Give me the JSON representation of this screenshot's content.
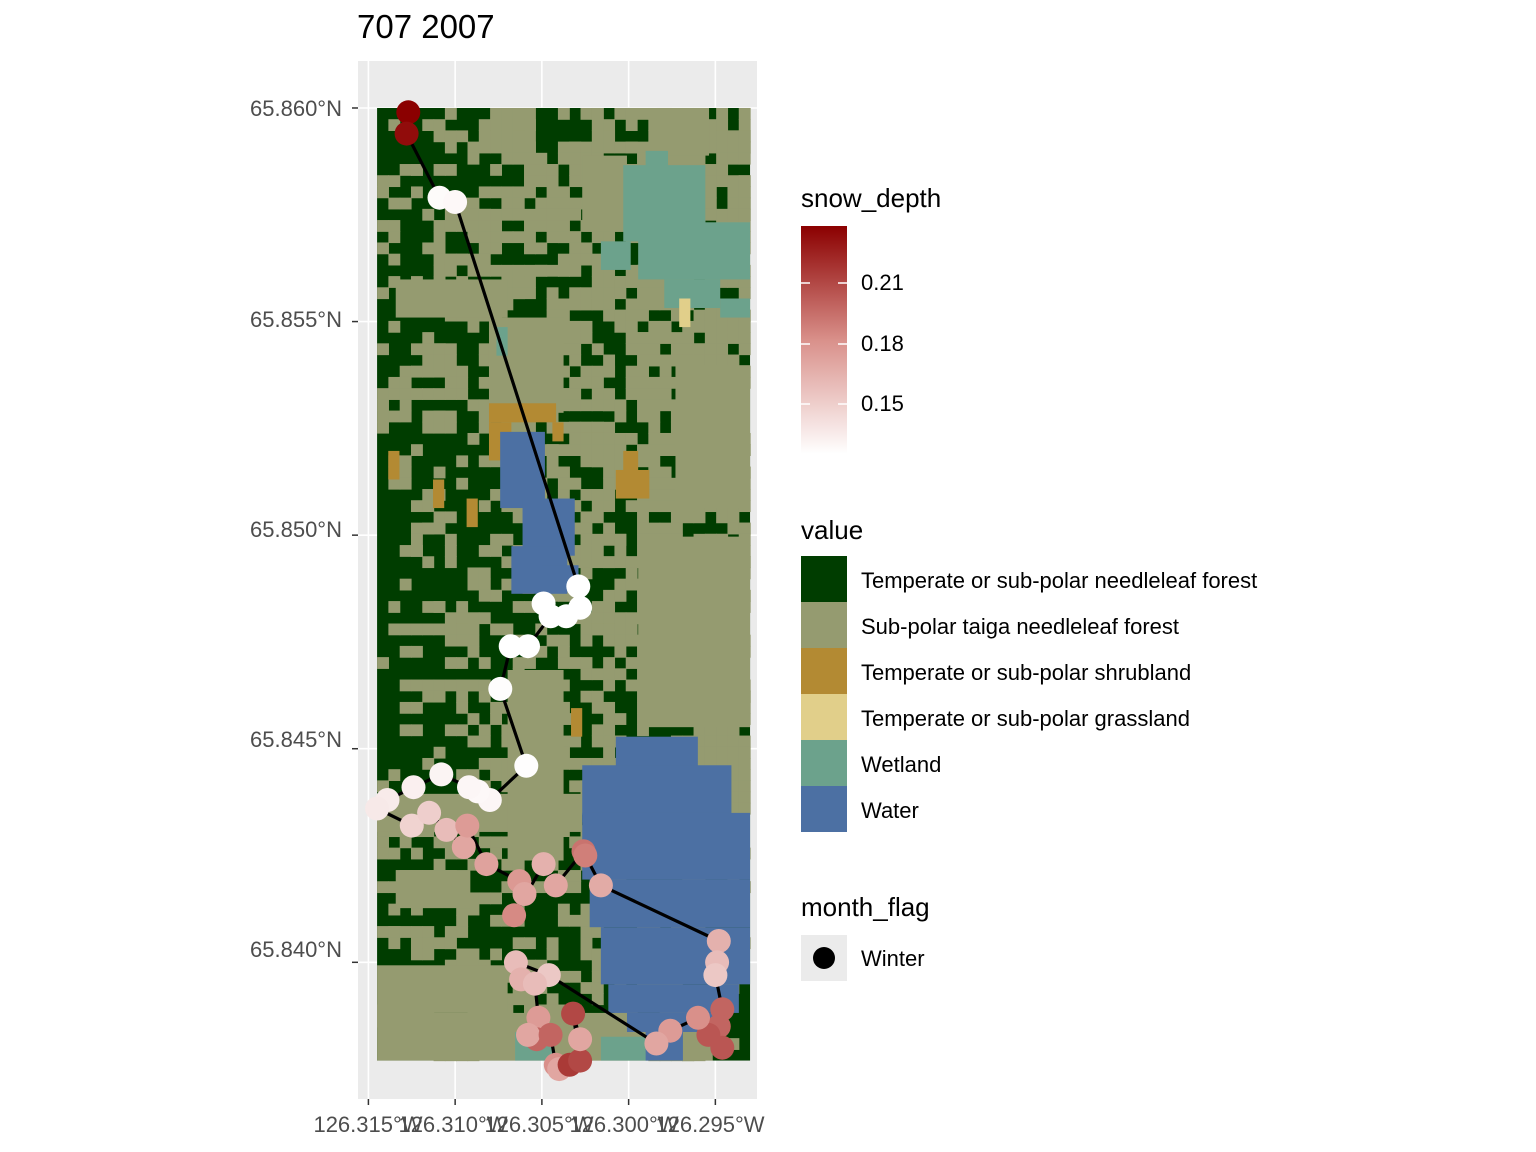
{
  "title": "707 2007",
  "axes": {
    "y_ticks": [
      "65.860°N",
      "65.855°N",
      "65.850°N",
      "65.845°N",
      "65.840°N"
    ],
    "x_ticks": [
      "126.315°W",
      "126.310°W",
      "126.305°W",
      "126.300°W",
      "126.295°W"
    ]
  },
  "legend_snow": {
    "title": "snow_depth",
    "labels": [
      "0.21",
      "0.18",
      "0.15"
    ],
    "color_low": "#ffffff",
    "color_high": "#8b0000"
  },
  "legend_value": {
    "title": "value",
    "items": [
      {
        "label": "Temperate or sub-polar needleleaf forest",
        "color": "#003d00"
      },
      {
        "label": "Sub-polar taiga needleleaf forest",
        "color": "#959b70"
      },
      {
        "label": "Temperate or sub-polar shrubland",
        "color": "#b38a33"
      },
      {
        "label": "Temperate or sub-polar grassland",
        "color": "#e1cf8a"
      },
      {
        "label": "Wetland",
        "color": "#6ca28c"
      },
      {
        "label": "Water",
        "color": "#4c70a3"
      }
    ]
  },
  "legend_month": {
    "title": "month_flag",
    "items": [
      {
        "label": "Winter"
      }
    ]
  },
  "chart_data": {
    "type": "map",
    "xlim": [
      -126.3156,
      -126.2926
    ],
    "ylim": [
      65.8368,
      65.8611
    ],
    "x_label_lon": [
      -126.315,
      -126.31,
      -126.305,
      -126.3,
      -126.295
    ],
    "y_label_lat": [
      65.86,
      65.855,
      65.85,
      65.845,
      65.84
    ],
    "snow_depth_range": [
      0.13,
      0.23
    ],
    "raster_extent": {
      "lon": [
        -126.3145,
        -126.293
      ],
      "lat": [
        65.8377,
        65.86
      ]
    },
    "track": [
      {
        "lon": -126.3127,
        "lat": 65.8599,
        "snow": 0.23
      },
      {
        "lon": -126.3128,
        "lat": 65.8594,
        "snow": 0.226
      },
      {
        "lon": -126.3109,
        "lat": 65.8579,
        "snow": 0.132
      },
      {
        "lon": -126.31,
        "lat": 65.8578,
        "snow": 0.133
      },
      {
        "lon": -126.3029,
        "lat": 65.8488,
        "snow": 0.13
      },
      {
        "lon": -126.3028,
        "lat": 65.8483,
        "snow": 0.13
      },
      {
        "lon": -126.3036,
        "lat": 65.8481,
        "snow": 0.13
      },
      {
        "lon": -126.3049,
        "lat": 65.8484,
        "snow": 0.13
      },
      {
        "lon": -126.3045,
        "lat": 65.8481,
        "snow": 0.13
      },
      {
        "lon": -126.3058,
        "lat": 65.8474,
        "snow": 0.13
      },
      {
        "lon": -126.3068,
        "lat": 65.8474,
        "snow": 0.13
      },
      {
        "lon": -126.3074,
        "lat": 65.8464,
        "snow": 0.131
      },
      {
        "lon": -126.3059,
        "lat": 65.8446,
        "snow": 0.131
      },
      {
        "lon": -126.308,
        "lat": 65.8438,
        "snow": 0.134
      },
      {
        "lon": -126.3087,
        "lat": 65.844,
        "snow": 0.133
      },
      {
        "lon": -126.3092,
        "lat": 65.8441,
        "snow": 0.134
      },
      {
        "lon": -126.3108,
        "lat": 65.8444,
        "snow": 0.135
      },
      {
        "lon": -126.3124,
        "lat": 65.8441,
        "snow": 0.137
      },
      {
        "lon": -126.3139,
        "lat": 65.8438,
        "snow": 0.139
      },
      {
        "lon": -126.3145,
        "lat": 65.8436,
        "snow": 0.14
      },
      {
        "lon": -126.3125,
        "lat": 65.8432,
        "snow": 0.15
      },
      {
        "lon": -126.3115,
        "lat": 65.8435,
        "snow": 0.152
      },
      {
        "lon": -126.3105,
        "lat": 65.8431,
        "snow": 0.16
      },
      {
        "lon": -126.3095,
        "lat": 65.8427,
        "snow": 0.17
      },
      {
        "lon": -126.3093,
        "lat": 65.8432,
        "snow": 0.175
      },
      {
        "lon": -126.3082,
        "lat": 65.8423,
        "snow": 0.172
      },
      {
        "lon": -126.3063,
        "lat": 65.8419,
        "snow": 0.176
      },
      {
        "lon": -126.306,
        "lat": 65.8416,
        "snow": 0.17
      },
      {
        "lon": -126.3066,
        "lat": 65.8411,
        "snow": 0.182
      },
      {
        "lon": -126.3049,
        "lat": 65.8423,
        "snow": 0.165
      },
      {
        "lon": -126.3042,
        "lat": 65.8418,
        "snow": 0.17
      },
      {
        "lon": -126.3026,
        "lat": 65.8426,
        "snow": 0.19
      },
      {
        "lon": -126.3025,
        "lat": 65.8425,
        "snow": 0.186
      },
      {
        "lon": -126.3016,
        "lat": 65.8418,
        "snow": 0.168
      },
      {
        "lon": -126.2948,
        "lat": 65.8405,
        "snow": 0.165
      },
      {
        "lon": -126.2949,
        "lat": 65.84,
        "snow": 0.16
      },
      {
        "lon": -126.295,
        "lat": 65.8397,
        "snow": 0.155
      },
      {
        "lon": -126.2946,
        "lat": 65.8389,
        "snow": 0.195
      },
      {
        "lon": -126.2948,
        "lat": 65.8385,
        "snow": 0.195
      },
      {
        "lon": -126.2954,
        "lat": 65.8383,
        "snow": 0.2
      },
      {
        "lon": -126.2946,
        "lat": 65.838,
        "snow": 0.2
      },
      {
        "lon": -126.296,
        "lat": 65.8387,
        "snow": 0.18
      },
      {
        "lon": -126.2976,
        "lat": 65.8384,
        "snow": 0.175
      },
      {
        "lon": -126.2984,
        "lat": 65.8381,
        "snow": 0.17
      },
      {
        "lon": -126.3046,
        "lat": 65.8397,
        "snow": 0.155
      },
      {
        "lon": -126.3065,
        "lat": 65.84,
        "snow": 0.16
      },
      {
        "lon": -126.3062,
        "lat": 65.8396,
        "snow": 0.165
      },
      {
        "lon": -126.3054,
        "lat": 65.8395,
        "snow": 0.16
      },
      {
        "lon": -126.3052,
        "lat": 65.8387,
        "snow": 0.175
      },
      {
        "lon": -126.3053,
        "lat": 65.8382,
        "snow": 0.195
      },
      {
        "lon": -126.3058,
        "lat": 65.8383,
        "snow": 0.17
      },
      {
        "lon": -126.3045,
        "lat": 65.8383,
        "snow": 0.195
      },
      {
        "lon": -126.3042,
        "lat": 65.8376,
        "snow": 0.18
      },
      {
        "lon": -126.304,
        "lat": 65.8375,
        "snow": 0.17
      },
      {
        "lon": -126.3034,
        "lat": 65.8376,
        "snow": 0.21
      },
      {
        "lon": -126.3028,
        "lat": 65.8377,
        "snow": 0.205
      },
      {
        "lon": -126.3032,
        "lat": 65.8388,
        "snow": 0.205
      },
      {
        "lon": -126.3028,
        "lat": 65.8382,
        "snow": 0.17
      }
    ]
  }
}
